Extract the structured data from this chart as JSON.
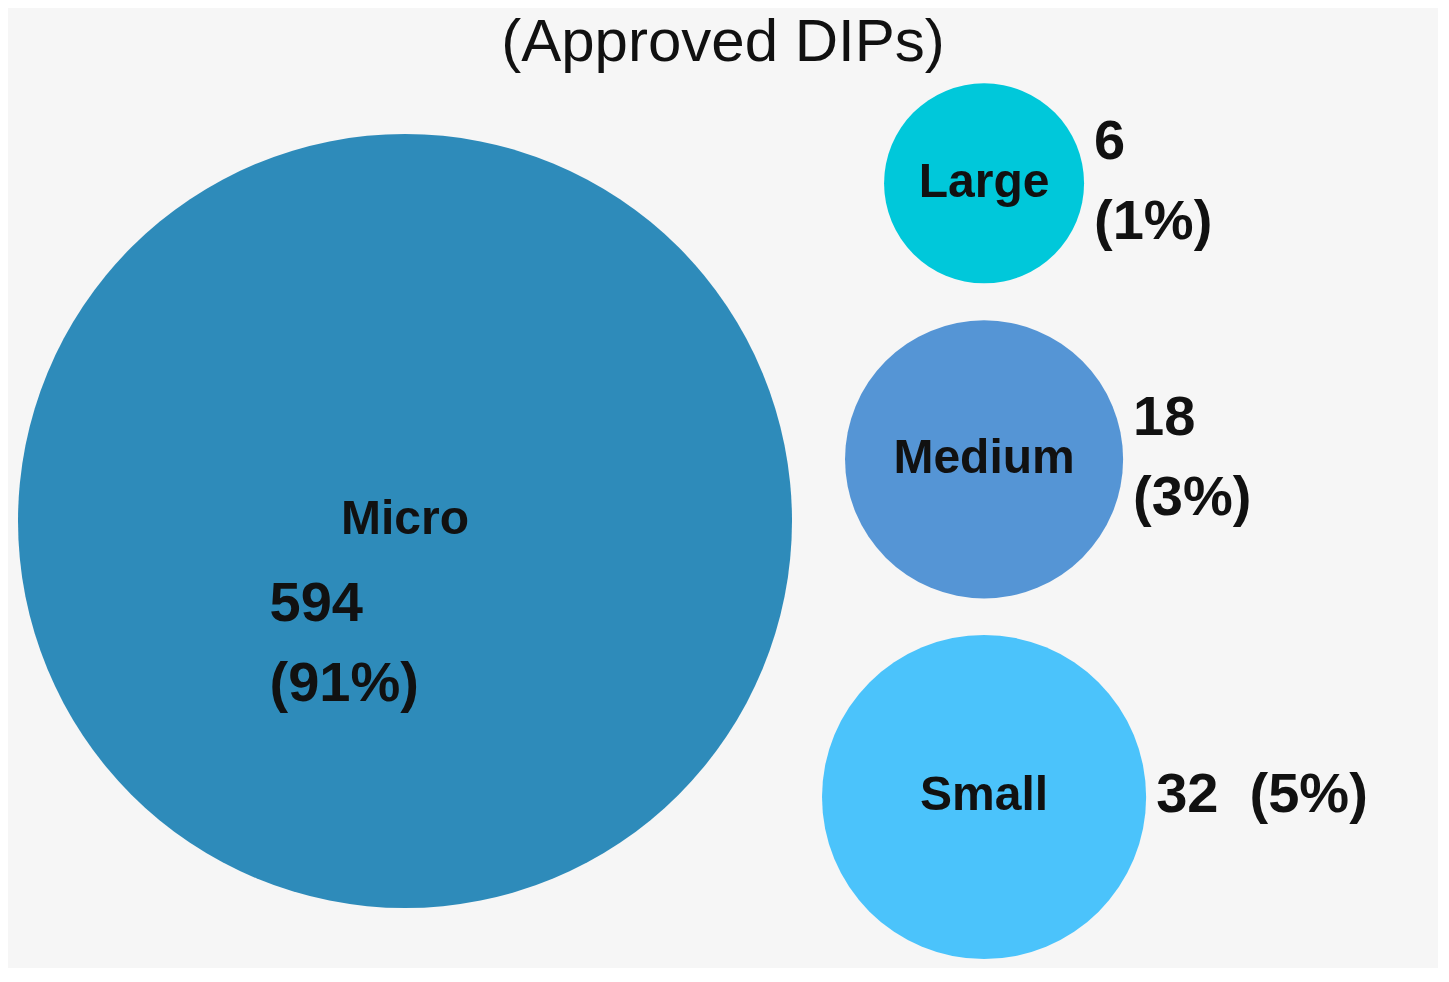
{
  "chart_data": {
    "type": "other",
    "title": "(Approved DIPs)",
    "categories": [
      "Micro",
      "Large",
      "Medium",
      "Small"
    ],
    "values": [
      91,
      1,
      3,
      5
    ],
    "value_labels": [
      "594\n(91%)",
      "6\n(1%)",
      "18\n(3%)",
      "32  (5%)"
    ],
    "colors": [
      "#2e8bba",
      "#00c8da",
      "#5595d5",
      "#4bc3fb"
    ],
    "data_labels": true
  }
}
